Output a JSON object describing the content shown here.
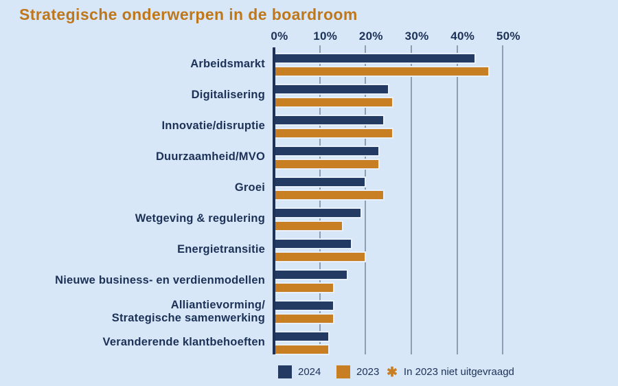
{
  "title": "Strategische onderwerpen in de boardroom",
  "colors": {
    "background": "#d7e7f8",
    "navy": "#233a63",
    "orange": "#c87e22",
    "title_text": "#bf771c",
    "label_text": "#1c3156",
    "gridline": "#8d9cb3",
    "axis_line": "#1e3157",
    "bar_outline": "#e7f0fb"
  },
  "legend": {
    "items": [
      {
        "label": "2024",
        "color": "#233a63"
      },
      {
        "label": "2023",
        "color": "#c87e22"
      }
    ],
    "footnote_marker": "✱",
    "footnote": "In 2023 niet uitgevraagd"
  },
  "chart_data": {
    "type": "bar",
    "orientation": "horizontal",
    "title": "Strategische onderwerpen in de boardroom",
    "categories": [
      "Arbeidsmarkt",
      "Digitalisering",
      "Innovatie/disruptie",
      "Duurzaamheid/MVO",
      "Groei",
      "Wetgeving & regulering",
      "Energietransitie",
      "Nieuwe business- en verdienmodellen",
      "Alliantievorming/\nStrategische samenwerking",
      "Veranderende klantbehoeften"
    ],
    "series": [
      {
        "name": "2024",
        "color": "#233a63",
        "values": [
          44,
          25,
          24,
          23,
          20,
          19,
          17,
          16,
          13,
          12
        ]
      },
      {
        "name": "2023",
        "color": "#c87e22",
        "values": [
          47,
          26,
          26,
          23,
          24,
          15,
          20,
          13,
          13,
          12
        ]
      }
    ],
    "x_ticks": [
      "0%",
      "10%",
      "20%",
      "30%",
      "40%",
      "50%"
    ],
    "x_tick_values": [
      0,
      10,
      20,
      30,
      40,
      50
    ],
    "xlim": [
      0,
      50
    ],
    "grid": "vertical",
    "legend_position": "bottom",
    "footnote": "✱ In 2023 niet uitgevraagd"
  }
}
